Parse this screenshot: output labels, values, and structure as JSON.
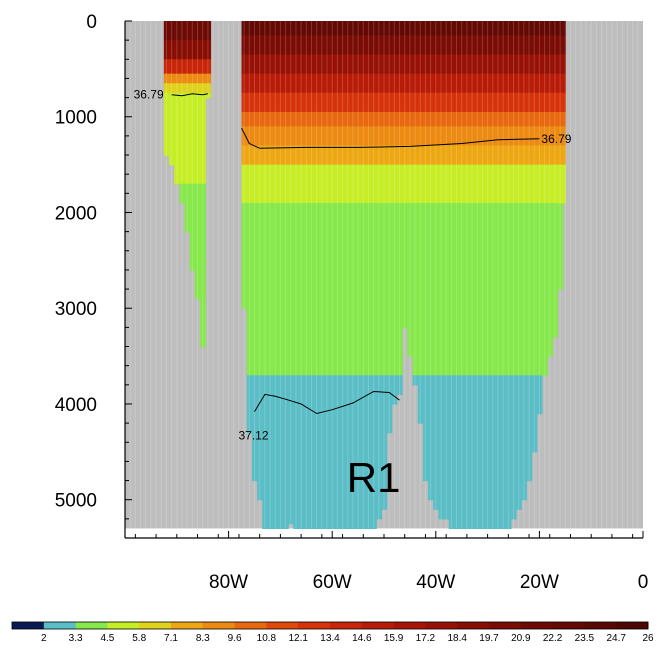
{
  "chart_data": {
    "type": "heatmap",
    "title": "",
    "xlabel": "",
    "ylabel": "",
    "x_axis": {
      "range": [
        -100,
        0
      ],
      "ticks": [
        {
          "value": -80,
          "label": "80W"
        },
        {
          "value": -60,
          "label": "60W"
        },
        {
          "value": -40,
          "label": "40W"
        },
        {
          "value": -20,
          "label": "20W"
        },
        {
          "value": 0,
          "label": "0"
        }
      ]
    },
    "y_axis": {
      "range": [
        0,
        5400
      ],
      "reversed": true,
      "ticks": [
        {
          "value": 0,
          "label": "0"
        },
        {
          "value": 1000,
          "label": "1000"
        },
        {
          "value": 2000,
          "label": "2000"
        },
        {
          "value": 3000,
          "label": "3000"
        },
        {
          "value": 4000,
          "label": "4000"
        },
        {
          "value": 5000,
          "label": "5000"
        }
      ]
    },
    "grid": true,
    "colorbar": {
      "placement": "bottom",
      "levels": [
        "2",
        "3.3",
        "4.5",
        "5.8",
        "7.1",
        "8.3",
        "9.6",
        "10.8",
        "12.1",
        "13.4",
        "14.6",
        "15.9",
        "17.2",
        "18.4",
        "19.7",
        "20.9",
        "22.2",
        "23.5",
        "24.7",
        "26"
      ],
      "colors": [
        "#0a1a52",
        "#5bbec7",
        "#86e84b",
        "#c6ee27",
        "#dfd21d",
        "#eda712",
        "#ec8a12",
        "#e8680f",
        "#e0480c",
        "#d6330a",
        "#c92509",
        "#b81b08",
        "#a81507",
        "#981106",
        "#880e05",
        "#7a0c05",
        "#6e0a05",
        "#640904",
        "#5a0803",
        "#4e0603"
      ]
    },
    "contours": [
      {
        "label": "36.79",
        "points": [
          [
            -91,
            770
          ],
          [
            -89,
            780
          ],
          [
            -87,
            760
          ],
          [
            -85,
            770
          ],
          [
            -84,
            760
          ]
        ]
      },
      {
        "label": "36.79",
        "points": [
          [
            -77.5,
            1120
          ],
          [
            -76,
            1280
          ],
          [
            -74,
            1330
          ],
          [
            -65,
            1320
          ],
          [
            -55,
            1320
          ],
          [
            -45,
            1310
          ],
          [
            -35,
            1280
          ],
          [
            -28,
            1240
          ],
          [
            -20,
            1230
          ]
        ]
      },
      {
        "label": "37.12",
        "points": [
          [
            -75,
            4080
          ],
          [
            -73,
            3900
          ],
          [
            -71,
            3920
          ],
          [
            -69,
            3950
          ],
          [
            -66,
            4000
          ],
          [
            -63,
            4100
          ],
          [
            -60,
            4060
          ],
          [
            -56,
            3990
          ],
          [
            -52,
            3870
          ],
          [
            -49,
            3880
          ],
          [
            -47,
            3960
          ]
        ]
      }
    ],
    "regions": [
      {
        "label": "R1",
        "x": -52,
        "y": 4920
      }
    ]
  }
}
